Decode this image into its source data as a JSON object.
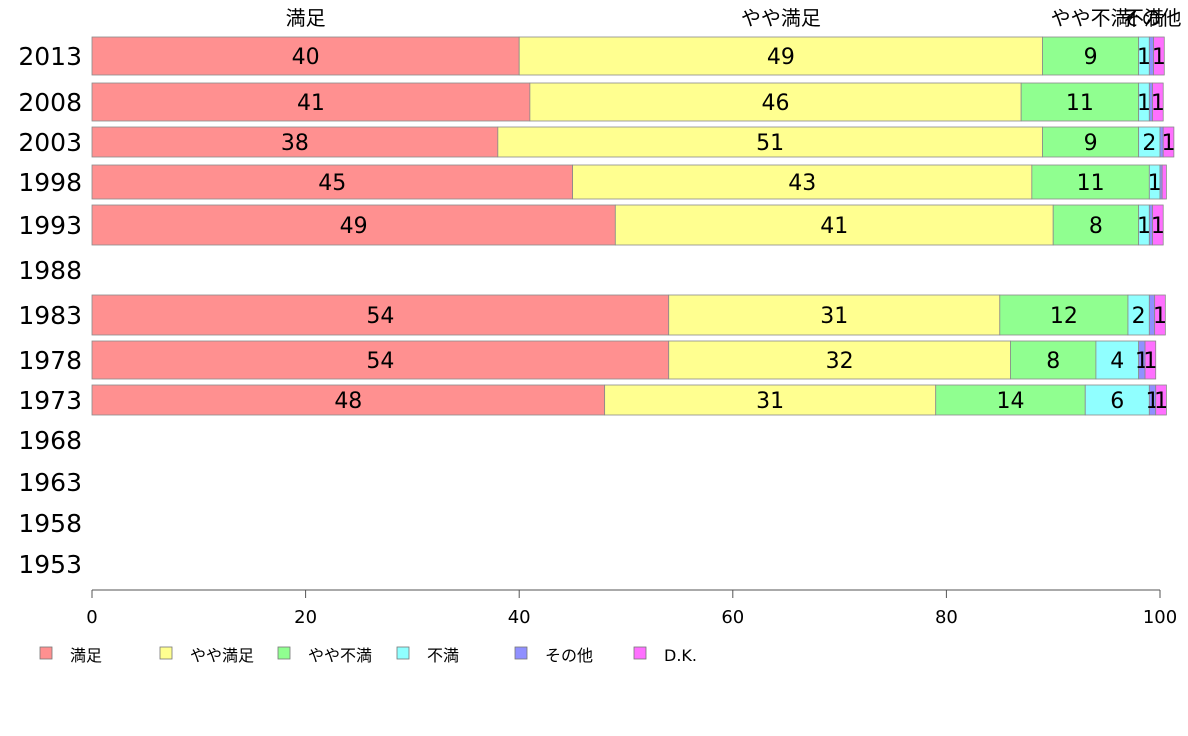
{
  "chart_data": {
    "type": "bar",
    "orientation": "horizontal",
    "stacked": true,
    "xlim": [
      0,
      100
    ],
    "x_ticks": [
      "0",
      "20",
      "40",
      "60",
      "80",
      "100"
    ],
    "categories": [
      "2013",
      "2008",
      "2003",
      "1998",
      "1993",
      "1988",
      "1983",
      "1978",
      "1973",
      "1968",
      "1963",
      "1958",
      "1953"
    ],
    "top_labels": [
      "満足",
      "やや満足",
      "やや不満",
      "不満",
      "その他"
    ],
    "legend_position": "bottom",
    "series": [
      {
        "name": "満足",
        "color": "#ff9090",
        "values": [
          40,
          41,
          38,
          45,
          49,
          null,
          54,
          54,
          48,
          null,
          null,
          null,
          null
        ]
      },
      {
        "name": "やや満足",
        "color": "#ffff90",
        "values": [
          49,
          46,
          51,
          43,
          41,
          null,
          31,
          32,
          31,
          null,
          null,
          null,
          null
        ]
      },
      {
        "name": "やや不満",
        "color": "#90ff90",
        "values": [
          9,
          11,
          9,
          11,
          8,
          null,
          12,
          8,
          14,
          null,
          null,
          null,
          null
        ]
      },
      {
        "name": "不満",
        "color": "#90ffff",
        "values": [
          1,
          1,
          2,
          1,
          1,
          null,
          2,
          4,
          6,
          null,
          null,
          null,
          null
        ]
      },
      {
        "name": "その他",
        "color": "#9090ff",
        "values": [
          0.4,
          0.3,
          0.3,
          0.2,
          0.3,
          null,
          0.5,
          0.6,
          0.6,
          null,
          null,
          null,
          null
        ]
      },
      {
        "name": "D.K.",
        "color": "#ff70ff",
        "values": [
          1,
          1,
          1,
          0.4,
          1,
          null,
          1,
          1,
          1,
          null,
          null,
          null,
          null
        ]
      }
    ],
    "value_labels": [
      [
        "40",
        "49",
        "9",
        "1",
        "",
        "1"
      ],
      [
        "41",
        "46",
        "11",
        "1",
        "",
        "1"
      ],
      [
        "38",
        "51",
        "9",
        "2",
        "",
        "1"
      ],
      [
        "45",
        "43",
        "11",
        "1",
        "",
        ""
      ],
      [
        "49",
        "41",
        "8",
        "1",
        "",
        "1"
      ],
      [
        "",
        "",
        "",
        "",
        "",
        ""
      ],
      [
        "54",
        "31",
        "12",
        "2",
        "",
        "1"
      ],
      [
        "54",
        "32",
        "8",
        "4",
        "1",
        "1"
      ],
      [
        "48",
        "31",
        "14",
        "6",
        "1",
        "1"
      ],
      [
        "",
        "",
        "",
        "",
        "",
        ""
      ],
      [
        "",
        "",
        "",
        "",
        "",
        ""
      ],
      [
        "",
        "",
        "",
        "",
        "",
        ""
      ],
      [
        "",
        "",
        "",
        "",
        "",
        ""
      ]
    ]
  }
}
